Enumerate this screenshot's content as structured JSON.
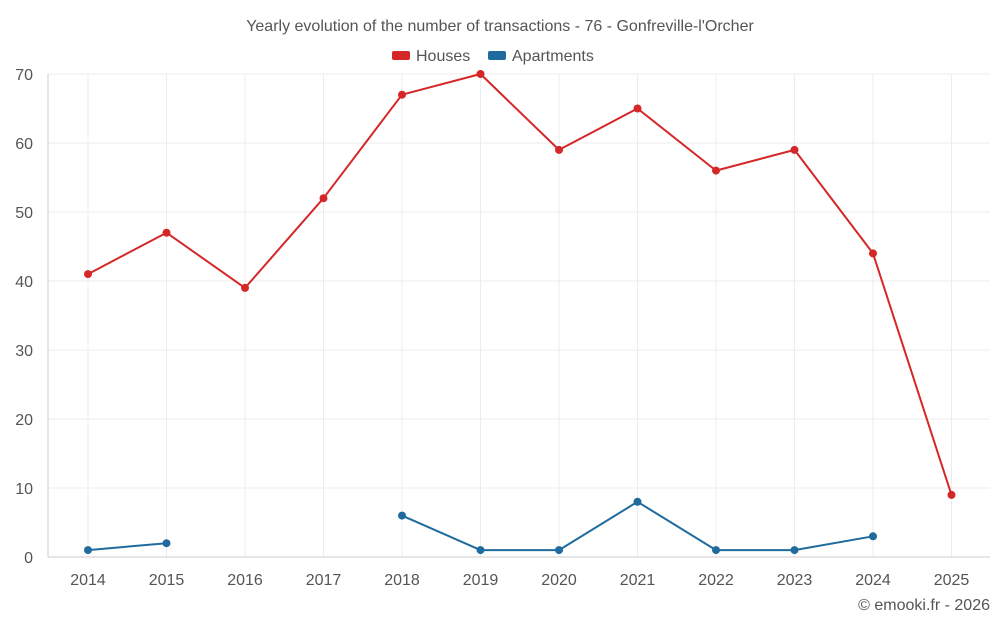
{
  "chart_data": {
    "type": "line",
    "title": "Yearly evolution of the number of transactions - 76 - Gonfreville-l'Orcher",
    "xlabel": "",
    "ylabel": "",
    "categories": [
      "2014",
      "2015",
      "2016",
      "2017",
      "2018",
      "2019",
      "2020",
      "2021",
      "2022",
      "2023",
      "2024",
      "2025"
    ],
    "ylim": [
      0,
      70
    ],
    "yticks": [
      0,
      10,
      20,
      30,
      40,
      50,
      60,
      70
    ],
    "grid": true,
    "legend_position": "top-center",
    "series": [
      {
        "name": "Houses",
        "color": "#d62728",
        "values": [
          41,
          47,
          39,
          52,
          67,
          70,
          59,
          65,
          56,
          59,
          44,
          9
        ]
      },
      {
        "name": "Apartments",
        "color": "#1f6b9e",
        "values": [
          1,
          2,
          null,
          null,
          6,
          1,
          1,
          8,
          1,
          1,
          3,
          null
        ]
      }
    ]
  },
  "credit": "© emooki.fr - 2026",
  "colors": {
    "grid": "#ececec",
    "axis": "#cccccc",
    "text": "#555555"
  }
}
